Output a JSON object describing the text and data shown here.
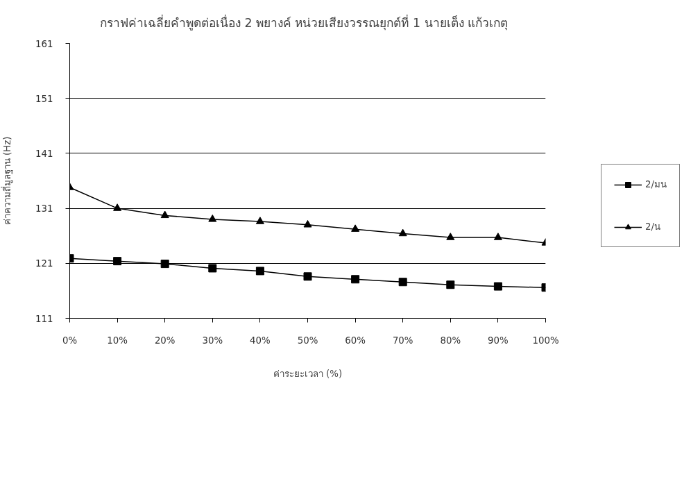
{
  "chart_data": {
    "type": "line",
    "title": "กราฟค่าเฉลี่ยคำพูดต่อเนื่อง 2 พยางค์ หน่วยเสียงวรรณยุกต์ที่ 1  นายเต็ง  แก้วเกตุ",
    "xlabel": "ค่าระยะเวลา (%)",
    "ylabel": "ค่าความถี่มูลฐาน (Hz)",
    "x": [
      0,
      10,
      20,
      30,
      40,
      50,
      60,
      70,
      80,
      90,
      100
    ],
    "xlim": [
      0,
      100
    ],
    "xticks": [
      {
        "value": 0,
        "label": "0%"
      },
      {
        "value": 10,
        "label": "10%"
      },
      {
        "value": 20,
        "label": "20%"
      },
      {
        "value": 30,
        "label": "30%"
      },
      {
        "value": 40,
        "label": "40%"
      },
      {
        "value": 50,
        "label": "50%"
      },
      {
        "value": 60,
        "label": "60%"
      },
      {
        "value": 70,
        "label": "70%"
      },
      {
        "value": 80,
        "label": "80%"
      },
      {
        "value": 90,
        "label": "90%"
      },
      {
        "value": 100,
        "label": "100%"
      }
    ],
    "ylim": [
      111,
      161
    ],
    "yticks": [
      111,
      121,
      131,
      141,
      151,
      161
    ],
    "grid": "y",
    "legend": "right",
    "series": [
      {
        "name": "2/มน",
        "color": "#000000",
        "marker": "square",
        "values": [
          121.9,
          121.4,
          120.9,
          120.1,
          119.6,
          118.6,
          118.1,
          117.6,
          117.1,
          116.8,
          116.6
        ]
      },
      {
        "name": "2/น",
        "color": "#000000",
        "marker": "triangle",
        "values": [
          134.8,
          131.0,
          129.7,
          129.0,
          128.6,
          128.0,
          127.2,
          126.4,
          125.7,
          125.7,
          124.7
        ]
      }
    ]
  }
}
